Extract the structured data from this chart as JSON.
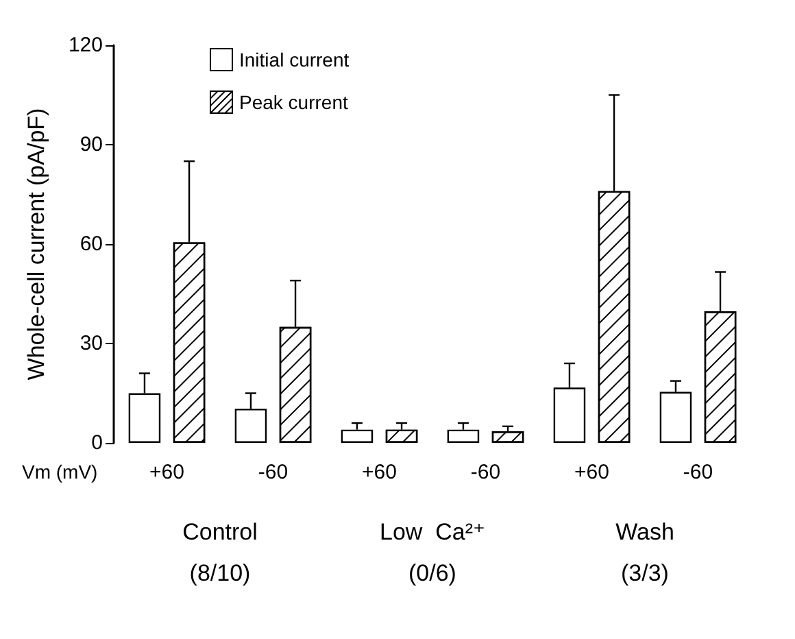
{
  "chart_data": {
    "type": "bar",
    "ylabel": "Whole-cell current (pA/pF)",
    "categories": [
      "+60",
      "-60",
      "+60",
      "-60",
      "+60",
      "-60"
    ],
    "series": [
      {
        "name": "Initial current",
        "color": "#ffffff",
        "values": [
          15,
          10.3,
          4,
          4,
          16.7,
          15.4
        ],
        "errors": [
          [
            15,
            21
          ],
          [
            10.3,
            15
          ],
          [
            4,
            6
          ],
          [
            4,
            6
          ],
          [
            16.7,
            24
          ],
          [
            15.4,
            18.7
          ]
        ]
      },
      {
        "name": "Peak current",
        "color": "#ffffff",
        "values": [
          60.5,
          35,
          4,
          3.5,
          76,
          39.7
        ],
        "errors": [
          [
            60.5,
            85
          ],
          [
            35,
            49
          ],
          [
            4,
            6
          ],
          [
            3.5,
            5
          ],
          [
            76,
            105
          ],
          [
            39.7,
            51.6
          ]
        ]
      }
    ],
    "ylim": [
      0,
      120
    ],
    "yticks": [
      0,
      30,
      60,
      90,
      120
    ],
    "grid": false,
    "legend": "top left",
    "annotations": [
      "Vm (mV)",
      "Control\n(8/10)",
      "Low  Ca²⁺\n(0/6)",
      "Wash\n(3/3)"
    ]
  }
}
